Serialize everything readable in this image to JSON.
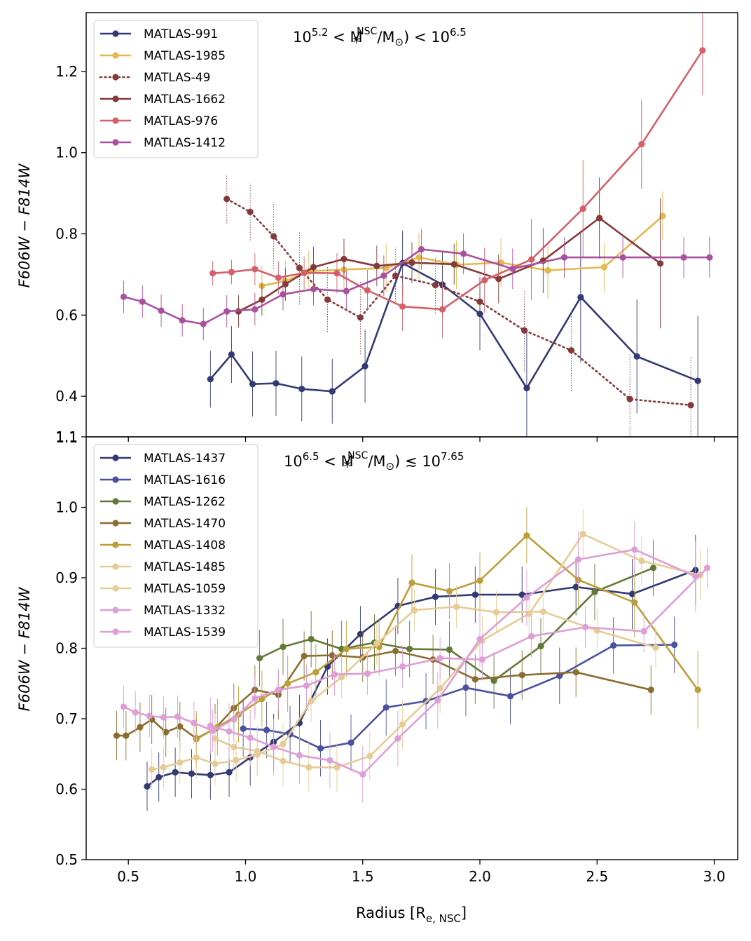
{
  "figure": {
    "xlabel_main": "Radius [R",
    "xlabel_sub": "e, NSC",
    "xlabel_close": "]",
    "ylabel_main": "F606W − F814W",
    "colors": {
      "m991": "#343a73",
      "m1985": "#e5b84d",
      "m49": "#84393a",
      "m1662": "#84393a",
      "m976": "#d5606a",
      "m1412": "#a8529f",
      "m1437": "#333a73",
      "m1616": "#4b51a0",
      "m1262": "#637939",
      "m1470": "#8c6d31",
      "m1408": "#bd9e39",
      "m1485": "#e7cb94",
      "m1059": "#e7cb94",
      "m1332": "#de9ed6",
      "m1539": "#de9ed6"
    }
  },
  "chart_data": [
    {
      "type": "line",
      "panel": "top",
      "xlabel": "Radius [R_e,NSC]",
      "ylabel": "F606W − F814W",
      "xlim": [
        0.32,
        3.1
      ],
      "ylim": [
        0.3,
        1.345
      ],
      "xticks": [
        0.5,
        1.0,
        1.5,
        2.0,
        2.5,
        3.0
      ],
      "xtick_labels": [
        "0.5",
        "1.0",
        "1.5",
        "2.0",
        "2.5",
        "3.0"
      ],
      "yticks": [
        0.4,
        0.6,
        0.8,
        1.0,
        1.2
      ],
      "ytick_labels": [
        "0.4",
        "0.6",
        "0.8",
        "1.0",
        "1.2"
      ],
      "edge_label": "1.1",
      "annotation": {
        "pre": "10",
        "exp1": "5.2",
        "mid": " < M",
        "sub": "*",
        "sup": "NSC",
        "post": "/M",
        "sun": "⊙",
        "tail": ") < 10",
        "exp2": "6.5"
      },
      "legend": "top-left",
      "series": [
        {
          "name": "MATLAS-991",
          "color_key": "m991",
          "dotted": false,
          "x": [
            0.85,
            0.94,
            1.03,
            1.13,
            1.24,
            1.37,
            1.51,
            1.67,
            1.84,
            2.0,
            2.2,
            2.43,
            2.67,
            2.93
          ],
          "y": [
            0.442,
            0.503,
            0.43,
            0.432,
            0.418,
            0.412,
            0.474,
            0.728,
            0.675,
            0.603,
            0.42,
            0.644,
            0.498,
            0.438
          ],
          "err": [
            0.07,
            0.07,
            0.08,
            0.08,
            0.08,
            0.08,
            0.09,
            0.08,
            0.08,
            0.09,
            0.14,
            0.16,
            0.14,
            0.16
          ]
        },
        {
          "name": "MATLAS-1985",
          "color_key": "m1985",
          "dotted": false,
          "x": [
            1.07,
            1.17,
            1.27,
            1.42,
            1.6,
            1.74,
            1.9,
            2.09,
            2.29,
            2.53,
            2.78
          ],
          "y": [
            0.672,
            0.684,
            0.708,
            0.712,
            0.716,
            0.742,
            0.724,
            0.729,
            0.71,
            0.718,
            0.844
          ],
          "err": [
            0.05,
            0.05,
            0.05,
            0.05,
            0.06,
            0.06,
            0.06,
            0.06,
            0.07,
            0.06,
            0.06
          ]
        },
        {
          "name": "MATLAS-49",
          "color_key": "m49",
          "dotted": true,
          "x": [
            0.92,
            1.02,
            1.12,
            1.23,
            1.35,
            1.49,
            1.64,
            1.81,
            2.0,
            2.19,
            2.39,
            2.64,
            2.9
          ],
          "y": [
            0.886,
            0.854,
            0.794,
            0.716,
            0.638,
            0.594,
            0.697,
            0.674,
            0.633,
            0.562,
            0.513,
            0.393,
            0.378
          ],
          "err": [
            0.06,
            0.07,
            0.08,
            0.09,
            0.08,
            0.09,
            0.07,
            0.07,
            0.07,
            0.1,
            0.1,
            0.11,
            0.12
          ]
        },
        {
          "name": "MATLAS-1662",
          "color_key": "m1662",
          "dotted": false,
          "x": [
            0.97,
            1.07,
            1.17,
            1.29,
            1.42,
            1.56,
            1.71,
            1.89,
            2.08,
            2.27,
            2.51,
            2.77
          ],
          "y": [
            0.609,
            0.638,
            0.676,
            0.718,
            0.738,
            0.721,
            0.729,
            0.725,
            0.689,
            0.734,
            0.839,
            0.727
          ],
          "err": [
            0.04,
            0.04,
            0.04,
            0.05,
            0.05,
            0.05,
            0.05,
            0.05,
            0.06,
            0.08,
            0.1,
            0.16
          ]
        },
        {
          "name": "MATLAS-976",
          "color_key": "m976",
          "dotted": false,
          "x": [
            0.86,
            0.94,
            1.04,
            1.14,
            1.25,
            1.39,
            1.52,
            1.67,
            1.84,
            2.02,
            2.22,
            2.44,
            2.69,
            2.95
          ],
          "y": [
            0.703,
            0.706,
            0.713,
            0.692,
            0.704,
            0.703,
            0.661,
            0.621,
            0.614,
            0.686,
            0.737,
            0.862,
            1.021,
            1.252
          ],
          "err": [
            0.03,
            0.03,
            0.04,
            0.04,
            0.04,
            0.05,
            0.05,
            0.06,
            0.07,
            0.08,
            0.1,
            0.12,
            0.11,
            0.11
          ]
        },
        {
          "name": "MATLAS-1412",
          "color_key": "m1412",
          "dotted": false,
          "x": [
            0.48,
            0.56,
            0.64,
            0.73,
            0.82,
            0.92,
            1.04,
            1.16,
            1.29,
            1.43,
            1.59,
            1.75,
            1.93,
            2.14,
            2.36,
            2.61,
            2.87,
            2.98
          ],
          "y": [
            0.645,
            0.633,
            0.611,
            0.587,
            0.578,
            0.609,
            0.614,
            0.651,
            0.664,
            0.659,
            0.697,
            0.762,
            0.751,
            0.714,
            0.742,
            0.742,
            0.742,
            0.742
          ],
          "err": [
            0.04,
            0.04,
            0.04,
            0.04,
            0.04,
            0.04,
            0.04,
            0.04,
            0.04,
            0.05,
            0.05,
            0.05,
            0.05,
            0.05,
            0.05,
            0.05,
            0.05,
            0.05
          ]
        }
      ]
    },
    {
      "type": "line",
      "panel": "bottom",
      "xlabel": "Radius [R_e,NSC]",
      "ylabel": "F606W − F814W",
      "xlim": [
        0.32,
        3.1
      ],
      "ylim": [
        0.5,
        1.1
      ],
      "xticks": [
        0.5,
        1.0,
        1.5,
        2.0,
        2.5,
        3.0
      ],
      "xtick_labels": [
        "0.5",
        "1.0",
        "1.5",
        "2.0",
        "2.5",
        "3.0"
      ],
      "yticks": [
        0.5,
        0.6,
        0.7,
        0.8,
        0.9,
        1.0,
        1.1
      ],
      "ytick_labels": [
        "0.5",
        "0.6",
        "0.7",
        "0.8",
        "0.9",
        "1.0",
        "1.1"
      ],
      "annotation": {
        "pre": "10",
        "exp1": "6.5",
        "mid": " < M",
        "sub": "*",
        "sup": "NSC",
        "post": "/M",
        "sun": "⊙",
        "tail": ")  ≲  10",
        "exp2": "7.65"
      },
      "legend": "top-left",
      "series": [
        {
          "name": "MATLAS-1437",
          "color_key": "m1437",
          "dotted": false,
          "x": [
            0.58,
            0.63,
            0.7,
            0.77,
            0.85,
            0.93,
            1.02,
            1.12,
            1.23,
            1.35,
            1.49,
            1.65,
            1.81,
            1.98,
            2.18,
            2.41,
            2.65,
            2.92
          ],
          "y": [
            0.604,
            0.617,
            0.624,
            0.622,
            0.62,
            0.624,
            0.645,
            0.667,
            0.694,
            0.774,
            0.82,
            0.86,
            0.873,
            0.876,
            0.876,
            0.887,
            0.877,
            0.911
          ],
          "err": [
            0.035,
            0.035,
            0.035,
            0.035,
            0.035,
            0.035,
            0.04,
            0.04,
            0.04,
            0.04,
            0.04,
            0.04,
            0.04,
            0.04,
            0.04,
            0.04,
            0.05,
            0.05
          ]
        },
        {
          "name": "MATLAS-1616",
          "color_key": "m1616",
          "dotted": false,
          "x": [
            0.99,
            1.09,
            1.19,
            1.32,
            1.45,
            1.6,
            1.77,
            1.94,
            2.13,
            2.34,
            2.57,
            2.83
          ],
          "y": [
            0.686,
            0.684,
            0.678,
            0.658,
            0.666,
            0.716,
            0.725,
            0.744,
            0.732,
            0.761,
            0.804,
            0.805
          ],
          "err": [
            0.04,
            0.04,
            0.04,
            0.04,
            0.04,
            0.04,
            0.04,
            0.04,
            0.04,
            0.04,
            0.04,
            0.04
          ]
        },
        {
          "name": "MATLAS-1262",
          "color_key": "m1262",
          "dotted": false,
          "x": [
            1.06,
            1.16,
            1.28,
            1.41,
            1.55,
            1.7,
            1.87,
            2.06,
            2.26,
            2.49,
            2.74
          ],
          "y": [
            0.786,
            0.802,
            0.813,
            0.799,
            0.808,
            0.799,
            0.798,
            0.754,
            0.803,
            0.88,
            0.914
          ],
          "err": [
            0.04,
            0.04,
            0.04,
            0.04,
            0.04,
            0.04,
            0.04,
            0.04,
            0.04,
            0.04,
            0.04
          ]
        },
        {
          "name": "MATLAS-1470",
          "color_key": "m1470",
          "dotted": false,
          "x": [
            0.45,
            0.49,
            0.55,
            0.6,
            0.66,
            0.72,
            0.79,
            0.87,
            0.95,
            1.04,
            1.14,
            1.25,
            1.37,
            1.5,
            1.64,
            1.8,
            1.98,
            2.18,
            2.41,
            2.73
          ],
          "y": [
            0.676,
            0.676,
            0.688,
            0.699,
            0.681,
            0.689,
            0.672,
            0.686,
            0.715,
            0.741,
            0.734,
            0.789,
            0.79,
            0.787,
            0.796,
            0.784,
            0.756,
            0.762,
            0.766,
            0.741
          ],
          "err": [
            0.035,
            0.035,
            0.035,
            0.035,
            0.035,
            0.035,
            0.035,
            0.035,
            0.035,
            0.035,
            0.035,
            0.035,
            0.035,
            0.035,
            0.035,
            0.035,
            0.035,
            0.035,
            0.035,
            0.035
          ]
        },
        {
          "name": "MATLAS-1408",
          "color_key": "m1408",
          "dotted": false,
          "x": [
            0.79,
            0.88,
            0.97,
            1.07,
            1.18,
            1.3,
            1.43,
            1.57,
            1.71,
            1.87,
            2.0,
            2.2,
            2.42,
            2.66,
            2.93
          ],
          "y": [
            0.671,
            0.688,
            0.706,
            0.728,
            0.75,
            0.766,
            0.799,
            0.802,
            0.893,
            0.881,
            0.896,
            0.96,
            0.897,
            0.865,
            0.741
          ],
          "err": [
            0.04,
            0.04,
            0.04,
            0.04,
            0.04,
            0.04,
            0.04,
            0.04,
            0.04,
            0.04,
            0.04,
            0.04,
            0.04,
            0.05,
            0.055
          ]
        },
        {
          "name": "MATLAS-1485",
          "color_key": "m1485",
          "dotted": false,
          "x": [
            0.6,
            0.65,
            0.72,
            0.79,
            0.87,
            0.96,
            1.05,
            1.16,
            1.28,
            1.41,
            1.56,
            1.72,
            1.9,
            2.07,
            2.27,
            2.5,
            2.75
          ],
          "y": [
            0.628,
            0.631,
            0.638,
            0.645,
            0.636,
            0.641,
            0.649,
            0.664,
            0.725,
            0.759,
            0.807,
            0.854,
            0.859,
            0.851,
            0.852,
            0.825,
            0.801
          ],
          "err": [
            0.03,
            0.03,
            0.03,
            0.03,
            0.03,
            0.03,
            0.03,
            0.03,
            0.03,
            0.03,
            0.03,
            0.03,
            0.03,
            0.03,
            0.03,
            0.03,
            0.03
          ]
        },
        {
          "name": "MATLAS-1059",
          "color_key": "m1059",
          "dotted": false,
          "x": [
            0.87,
            0.95,
            1.05,
            1.16,
            1.27,
            1.39,
            1.53,
            1.67,
            1.83,
            2.01,
            2.21,
            2.44,
            2.69,
            2.94
          ],
          "y": [
            0.672,
            0.66,
            0.654,
            0.64,
            0.631,
            0.631,
            0.647,
            0.692,
            0.743,
            0.811,
            0.849,
            0.962,
            0.924,
            0.904
          ],
          "err": [
            0.035,
            0.035,
            0.035,
            0.035,
            0.035,
            0.035,
            0.035,
            0.035,
            0.035,
            0.035,
            0.035,
            0.035,
            0.035,
            0.035
          ]
        },
        {
          "name": "MATLAS-1332",
          "color_key": "m1332",
          "dotted": false,
          "x": [
            0.85,
            0.93,
            1.02,
            1.12,
            1.23,
            1.36,
            1.5,
            1.65,
            1.82,
            2.0,
            2.2,
            2.42,
            2.66,
            2.92
          ],
          "y": [
            0.69,
            0.682,
            0.673,
            0.66,
            0.648,
            0.641,
            0.621,
            0.672,
            0.726,
            0.813,
            0.872,
            0.926,
            0.94,
            0.902
          ],
          "err": [
            0.04,
            0.04,
            0.04,
            0.04,
            0.04,
            0.04,
            0.04,
            0.04,
            0.04,
            0.04,
            0.04,
            0.04,
            0.04,
            0.05
          ]
        },
        {
          "name": "MATLAS-1539",
          "color_key": "m1539",
          "dotted": false,
          "x": [
            0.48,
            0.53,
            0.59,
            0.65,
            0.71,
            0.78,
            0.86,
            0.95,
            1.04,
            1.14,
            1.26,
            1.38,
            1.52,
            1.67,
            1.83,
            2.01,
            2.22,
            2.45,
            2.7,
            2.97
          ],
          "y": [
            0.717,
            0.709,
            0.704,
            0.702,
            0.703,
            0.694,
            0.683,
            0.699,
            0.729,
            0.741,
            0.747,
            0.763,
            0.764,
            0.774,
            0.786,
            0.784,
            0.817,
            0.83,
            0.824,
            0.914
          ],
          "err": [
            0.03,
            0.03,
            0.03,
            0.03,
            0.03,
            0.03,
            0.03,
            0.03,
            0.03,
            0.03,
            0.03,
            0.03,
            0.03,
            0.03,
            0.03,
            0.03,
            0.03,
            0.03,
            0.03,
            0.03
          ]
        }
      ]
    }
  ]
}
